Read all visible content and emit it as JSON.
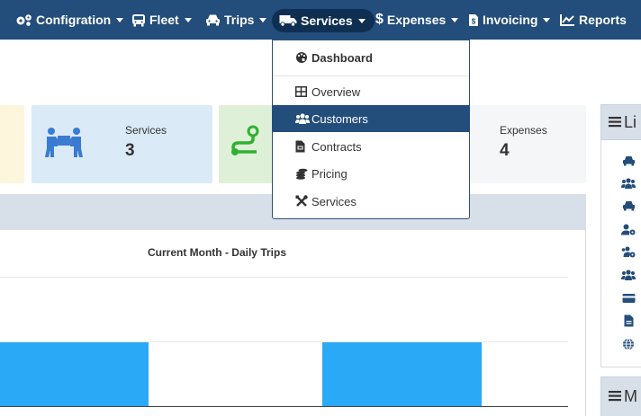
{
  "nav": {
    "items": [
      {
        "label": "Configration",
        "icon": "cogs-icon"
      },
      {
        "label": "Fleet",
        "icon": "bus-icon"
      },
      {
        "label": "Trips",
        "icon": "car-icon"
      },
      {
        "label": "Services",
        "icon": "truck-icon"
      },
      {
        "label": "Expenses",
        "icon": "dollar-icon"
      },
      {
        "label": "Invoicing",
        "icon": "invoice-icon"
      },
      {
        "label": "Reports",
        "icon": "line-chart-icon"
      }
    ]
  },
  "dropdown": {
    "items": [
      {
        "label": "Dashboard",
        "icon": "palette-icon"
      },
      {
        "label": "Overview",
        "icon": "table-icon"
      },
      {
        "label": "Customers",
        "icon": "users-icon"
      },
      {
        "label": "Contracts",
        "icon": "file-pdf-icon"
      },
      {
        "label": "Pricing",
        "icon": "coins-icon"
      },
      {
        "label": "Services",
        "icon": "tools-icon"
      }
    ],
    "selected": "Customers"
  },
  "cards": [
    {
      "label": "Services",
      "value": "3",
      "icon": "people-carry-icon",
      "color": "#daeaf7"
    },
    {
      "label": "Expenses",
      "value": "4",
      "color": "#f4f6f8"
    }
  ],
  "chart": {
    "title": "Current Month - Daily Trips"
  },
  "side": {
    "panel1_heading": "Li",
    "panel2_heading": "M",
    "icons": [
      "car-icon",
      "users-icon",
      "car-icon",
      "user-cog-icon",
      "users-cog-icon",
      "users-icon",
      "credit-card-icon",
      "file-icon",
      "globe-icon"
    ]
  },
  "colors": {
    "navbar": "#234d7a",
    "active_pill": "#0f2f52",
    "bar": "#2aa9f6",
    "route_icon": "#2fb12f",
    "services_icon": "#3b7bd1"
  }
}
